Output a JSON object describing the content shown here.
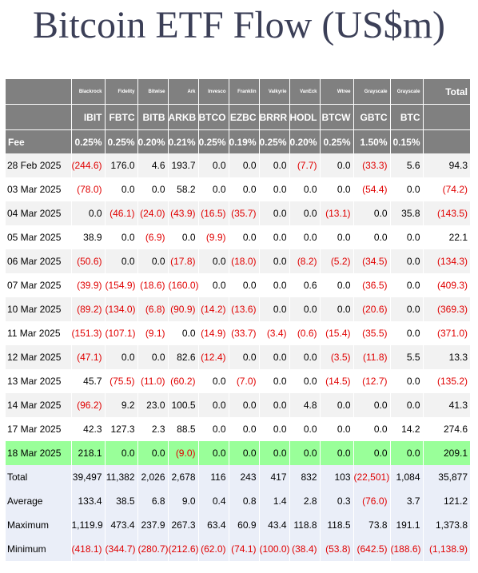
{
  "title": "Bitcoin ETF Flow (US$m)",
  "table": {
    "issuers": [
      "",
      "Blackrock",
      "Fidelity",
      "Bitwise",
      "Ark",
      "Invesco",
      "Franklin",
      "Valkyrie",
      "VanEck",
      "Wtree",
      "Grayscale",
      "Grayscale",
      "Total"
    ],
    "tickers": [
      "",
      "IBIT",
      "FBTC",
      "BITB",
      "ARKB",
      "BTCO",
      "EZBC",
      "BRRR",
      "HODL",
      "BTCW",
      "GBTC",
      "BTC",
      ""
    ],
    "fee": [
      "Fee",
      "0.25%",
      "0.25%",
      "0.20%",
      "0.21%",
      "0.25%",
      "0.19%",
      "0.25%",
      "0.20%",
      "0.25%",
      "1.50%",
      "0.15%",
      ""
    ],
    "days": [
      [
        "28 Feb 2025",
        "(244.6)",
        "176.0",
        "4.6",
        "193.7",
        "0.0",
        "0.0",
        "0.0",
        "(7.7)",
        "0.0",
        "(33.3)",
        "5.6",
        "94.3"
      ],
      [
        "03 Mar 2025",
        "(78.0)",
        "0.0",
        "0.0",
        "58.2",
        "0.0",
        "0.0",
        "0.0",
        "0.0",
        "0.0",
        "(54.4)",
        "0.0",
        "(74.2)"
      ],
      [
        "04 Mar 2025",
        "0.0",
        "(46.1)",
        "(24.0)",
        "(43.9)",
        "(16.5)",
        "(35.7)",
        "0.0",
        "0.0",
        "(13.1)",
        "0.0",
        "35.8",
        "(143.5)"
      ],
      [
        "05 Mar 2025",
        "38.9",
        "0.0",
        "(6.9)",
        "0.0",
        "(9.9)",
        "0.0",
        "0.0",
        "0.0",
        "0.0",
        "0.0",
        "0.0",
        "22.1"
      ],
      [
        "06 Mar 2025",
        "(50.6)",
        "0.0",
        "0.0",
        "(17.8)",
        "0.0",
        "(18.0)",
        "0.0",
        "(8.2)",
        "(5.2)",
        "(34.5)",
        "0.0",
        "(134.3)"
      ],
      [
        "07 Mar 2025",
        "(39.9)",
        "(154.9)",
        "(18.6)",
        "(160.0)",
        "0.0",
        "0.0",
        "0.0",
        "0.6",
        "0.0",
        "(36.5)",
        "0.0",
        "(409.3)"
      ],
      [
        "10 Mar 2025",
        "(89.2)",
        "(134.0)",
        "(6.8)",
        "(90.9)",
        "(14.2)",
        "(13.6)",
        "0.0",
        "0.0",
        "0.0",
        "(20.6)",
        "0.0",
        "(369.3)"
      ],
      [
        "11 Mar 2025",
        "(151.3)",
        "(107.1)",
        "(9.1)",
        "0.0",
        "(14.9)",
        "(33.7)",
        "(3.4)",
        "(0.6)",
        "(15.4)",
        "(35.5)",
        "0.0",
        "(371.0)"
      ],
      [
        "12 Mar 2025",
        "(47.1)",
        "0.0",
        "0.0",
        "82.6",
        "(12.4)",
        "0.0",
        "0.0",
        "0.0",
        "(3.5)",
        "(11.8)",
        "5.5",
        "13.3"
      ],
      [
        "13 Mar 2025",
        "45.7",
        "(75.5)",
        "(11.0)",
        "(60.2)",
        "0.0",
        "(7.0)",
        "0.0",
        "0.0",
        "(14.5)",
        "(12.7)",
        "0.0",
        "(135.2)"
      ],
      [
        "14 Mar 2025",
        "(96.2)",
        "9.2",
        "23.0",
        "100.5",
        "0.0",
        "0.0",
        "0.0",
        "4.8",
        "0.0",
        "0.0",
        "0.0",
        "41.3"
      ],
      [
        "17 Mar 2025",
        "42.3",
        "127.3",
        "2.3",
        "88.5",
        "0.0",
        "0.0",
        "0.0",
        "0.0",
        "0.0",
        "0.0",
        "14.2",
        "274.6"
      ],
      [
        "18 Mar 2025",
        "218.1",
        "0.0",
        "0.0",
        "(9.0)",
        "0.0",
        "0.0",
        "0.0",
        "0.0",
        "0.0",
        "0.0",
        "0.0",
        "209.1"
      ]
    ],
    "highlight_row": "18 Mar 2025",
    "highlight_color": "#99ff99",
    "header_color": "#808080",
    "negative_color": "#e00000",
    "stats": [
      [
        "Total",
        "39,497",
        "11,382",
        "2,026",
        "2,678",
        "116",
        "243",
        "417",
        "832",
        "103",
        "(22,501)",
        "1,084",
        "35,877"
      ],
      [
        "Average",
        "133.4",
        "38.5",
        "6.8",
        "9.0",
        "0.4",
        "0.8",
        "1.4",
        "2.8",
        "0.3",
        "(76.0)",
        "3.7",
        "121.2"
      ],
      [
        "Maximum",
        "1,119.9",
        "473.4",
        "237.9",
        "267.3",
        "63.4",
        "60.9",
        "43.4",
        "118.8",
        "118.5",
        "73.8",
        "191.1",
        "1,373.8"
      ],
      [
        "Minimum",
        "(418.1)",
        "(344.7)",
        "(280.7)",
        "(212.6)",
        "(62.0)",
        "(74.1)",
        "(100.0)",
        "(38.4)",
        "(53.8)",
        "(642.5)",
        "(188.6)",
        "(1,138.9)"
      ]
    ]
  }
}
